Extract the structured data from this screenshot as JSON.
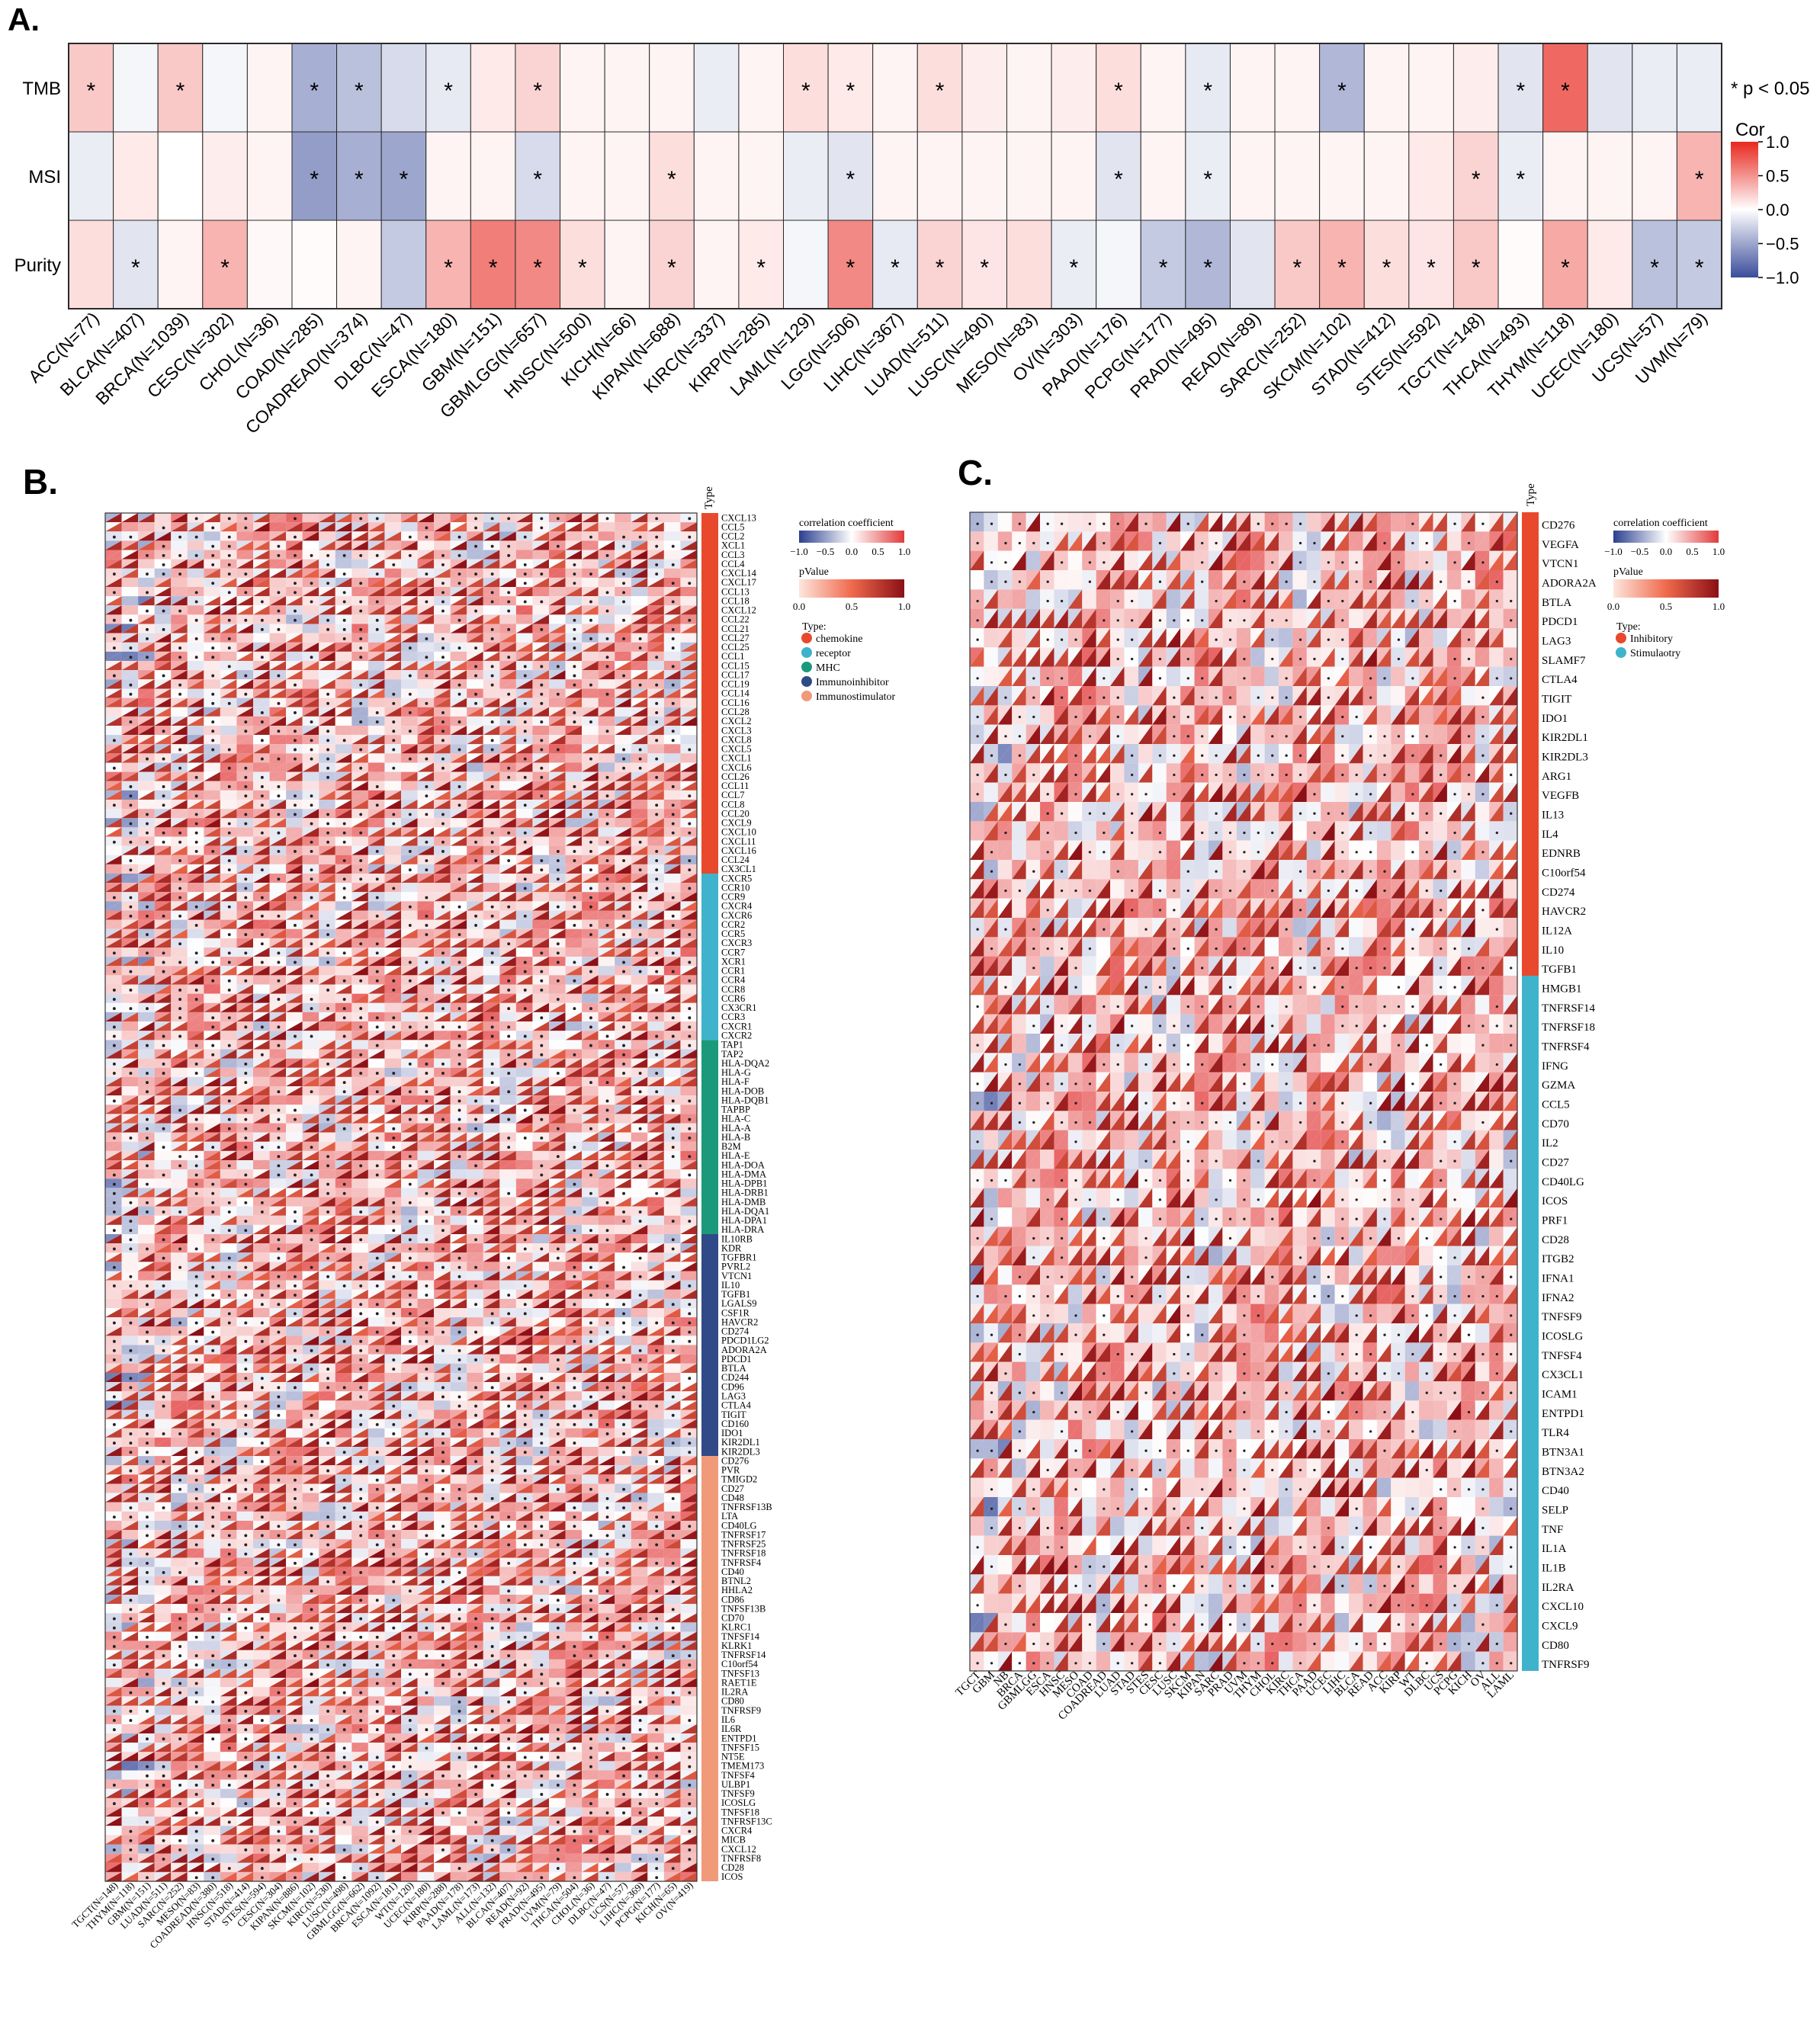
{
  "panel_labels": {
    "a": "A.",
    "b": "B.",
    "c": "C."
  },
  "chart_data": [
    {
      "type": "heatmap",
      "panel": "A.",
      "rows": [
        "TMB",
        "MSI",
        "Purity"
      ],
      "columns": [
        "ACC(N=77)",
        "BLCA(N=407)",
        "BRCA(N=1039)",
        "CESC(N=302)",
        "CHOL(N=36)",
        "COAD(N=285)",
        "COADREAD(N=374)",
        "DLBC(N=47)",
        "ESCA(N=180)",
        "GBM(N=151)",
        "GBMLGG(N=657)",
        "HNSC(N=500)",
        "KICH(N=66)",
        "KIPAN(N=688)",
        "KIRC(N=337)",
        "KIRP(N=285)",
        "LAML(N=129)",
        "LGG(N=506)",
        "LIHC(N=367)",
        "LUAD(N=511)",
        "LUSC(N=490)",
        "MESO(N=83)",
        "OV(N=303)",
        "PAAD(N=176)",
        "PCPG(N=177)",
        "PRAD(N=495)",
        "READ(N=89)",
        "SARC(N=252)",
        "SKCM(N=102)",
        "STAD(N=412)",
        "STES(N=592)",
        "TGCT(N=148)",
        "THCA(N=493)",
        "THYM(N=118)",
        "UCEC(N=180)",
        "UCS(N=57)",
        "UVM(N=79)"
      ],
      "values": [
        [
          0.25,
          -0.05,
          0.25,
          -0.05,
          0.05,
          -0.45,
          -0.35,
          -0.2,
          -0.12,
          0.1,
          0.2,
          0.05,
          0.05,
          0.05,
          -0.1,
          0.05,
          0.15,
          0.1,
          0.05,
          0.15,
          0.08,
          0.05,
          0.08,
          0.15,
          0.05,
          -0.12,
          0.05,
          0.05,
          -0.4,
          0.05,
          0.05,
          0.08,
          -0.15,
          0.7,
          -0.15,
          -0.1,
          -0.1
        ],
        [
          -0.1,
          0.1,
          0.0,
          0.08,
          0.05,
          -0.55,
          -0.45,
          -0.5,
          0.05,
          0.05,
          -0.2,
          0.05,
          0.05,
          0.15,
          0.05,
          0.05,
          -0.1,
          -0.15,
          0.05,
          0.05,
          0.05,
          0.05,
          0.05,
          -0.15,
          0.05,
          -0.1,
          0.05,
          0.05,
          0.05,
          0.05,
          0.1,
          0.2,
          -0.1,
          0.05,
          0.05,
          0.05,
          0.35
        ],
        [
          0.15,
          -0.15,
          0.05,
          0.35,
          0.03,
          0.02,
          0.05,
          -0.3,
          0.35,
          0.6,
          0.55,
          0.15,
          0.05,
          0.2,
          0.05,
          0.1,
          -0.05,
          0.55,
          -0.12,
          0.2,
          0.12,
          0.15,
          -0.1,
          -0.05,
          -0.3,
          -0.4,
          -0.15,
          0.25,
          0.35,
          0.15,
          0.12,
          0.25,
          0.02,
          0.4,
          0.1,
          -0.35,
          -0.3
        ]
      ],
      "significant": [
        [
          1,
          0,
          1,
          0,
          0,
          1,
          1,
          0,
          1,
          0,
          1,
          0,
          0,
          0,
          0,
          0,
          1,
          1,
          0,
          1,
          0,
          0,
          0,
          1,
          0,
          1,
          0,
          0,
          1,
          0,
          0,
          0,
          1,
          1,
          0,
          0,
          0
        ],
        [
          0,
          0,
          0,
          0,
          0,
          1,
          1,
          1,
          0,
          0,
          1,
          0,
          0,
          1,
          0,
          0,
          0,
          1,
          0,
          0,
          0,
          0,
          0,
          1,
          0,
          1,
          0,
          0,
          0,
          0,
          0,
          1,
          1,
          0,
          0,
          0,
          1
        ],
        [
          0,
          1,
          0,
          1,
          0,
          0,
          0,
          0,
          1,
          1,
          1,
          1,
          0,
          1,
          0,
          1,
          0,
          1,
          1,
          1,
          1,
          0,
          1,
          0,
          1,
          1,
          0,
          1,
          1,
          1,
          1,
          1,
          0,
          1,
          0,
          1,
          1
        ]
      ],
      "significance_note": "* p < 0.05",
      "legend_title": "Cor",
      "legend_ticks": [
        "1.0",
        "0.5",
        "0.0",
        "−0.5",
        "−1.0"
      ],
      "colors": {
        "low": "#3b4d9b",
        "mid": "#ffffff",
        "high": "#e8281f"
      }
    },
    {
      "type": "heatmap",
      "panel": "B.",
      "column_header": "Type",
      "columns": [
        "TGCT(N=148)",
        "THYM(N=118)",
        "GBM(N=151)",
        "LUAD(N=511)",
        "SARC(N=252)",
        "MESO(N=83)",
        "COADREAD(N=380)",
        "HNSC(N=518)",
        "STAD(N=414)",
        "STES(N=594)",
        "CESC(N=304)",
        "KIPAN(N=886)",
        "SKCM(N=102)",
        "KIRC(N=530)",
        "LUSC(N=498)",
        "GBMLGG(N=662)",
        "BRCA(N=1092)",
        "ESCA(N=181)",
        "WT(N=120)",
        "UCEC(N=180)",
        "KIRP(N=288)",
        "PAAD(N=178)",
        "LAML(N=173)",
        "ALL(N=132)",
        "BLCA(N=407)",
        "READ(N=92)",
        "PRAD(N=495)",
        "UVM(N=79)",
        "THCA(N=504)",
        "CHOL(N=36)",
        "DLBC(N=47)",
        "UCS(N=57)",
        "LIHC(N=369)",
        "PCPG(N=177)",
        "KICH(N=65)",
        "OV(N=419)"
      ],
      "rows": [
        "CXCL13",
        "CCL5",
        "CCL2",
        "XCL1",
        "CCL3",
        "CCL4",
        "CXCL14",
        "CXCL17",
        "CCL13",
        "CCL18",
        "CXCL12",
        "CCL22",
        "CCL21",
        "CCL27",
        "CCL25",
        "CCL1",
        "CCL15",
        "CCL17",
        "CCL19",
        "CCL14",
        "CCL16",
        "CCL28",
        "CXCL2",
        "CXCL3",
        "CXCL8",
        "CXCL5",
        "CXCL1",
        "CXCL6",
        "CCL26",
        "CCL11",
        "CCL7",
        "CCL8",
        "CCL20",
        "CXCL9",
        "CXCL10",
        "CXCL11",
        "CXCL16",
        "CCL24",
        "CX3CL1",
        "CXCR5",
        "CCR10",
        "CCR9",
        "CXCR4",
        "CXCR6",
        "CCR2",
        "CCR5",
        "CXCR3",
        "CCR7",
        "XCR1",
        "CCR1",
        "CCR4",
        "CCR8",
        "CCR6",
        "CX3CR1",
        "CCR3",
        "CXCR1",
        "CXCR2",
        "TAP1",
        "TAP2",
        "HLA-DQA2",
        "HLA-G",
        "HLA-F",
        "HLA-DOB",
        "HLA-DQB1",
        "TAPBP",
        "HLA-C",
        "HLA-A",
        "HLA-B",
        "B2M",
        "HLA-E",
        "HLA-DOA",
        "HLA-DMA",
        "HLA-DPB1",
        "HLA-DRB1",
        "HLA-DMB",
        "HLA-DQA1",
        "HLA-DPA1",
        "HLA-DRA",
        "IL10RB",
        "KDR",
        "TGFBR1",
        "PVRL2",
        "VTCN1",
        "IL10",
        "TGFB1",
        "LGALS9",
        "CSF1R",
        "HAVCR2",
        "CD274",
        "PDCD1LG2",
        "ADORA2A",
        "PDCD1",
        "BTLA",
        "CD244",
        "CD96",
        "LAG3",
        "CTLA4",
        "TIGIT",
        "CD160",
        "IDO1",
        "KIR2DL1",
        "KIR2DL3",
        "CD276",
        "PVR",
        "TMIGD2",
        "CD27",
        "CD48",
        "TNFRSF13B",
        "LTA",
        "CD40LG",
        "TNFRSF17",
        "TNFRSF25",
        "TNFRSF18",
        "TNFRSF4",
        "CD40",
        "BTNL2",
        "HHLA2",
        "CD86",
        "TNFSF13B",
        "CD70",
        "KLRC1",
        "TNFSF14",
        "KLRK1",
        "TNFRSF14",
        "C10orf54",
        "TNFSF13",
        "RAET1E",
        "IL2RA",
        "CD80",
        "TNFRSF9",
        "IL6",
        "IL6R",
        "ENTPD1",
        "TNFSF15",
        "NT5E",
        "TMEM173",
        "TNFSF4",
        "ULBP1",
        "TNFSF9",
        "ICOSLG",
        "TNFSF18",
        "TNFRSF13C",
        "CXCR4",
        "MICB",
        "CXCL12",
        "TNFRSF8",
        "CD28",
        "ICOS"
      ],
      "row_groups": [
        {
          "type": "chemokine",
          "count": 39
        },
        {
          "type": "receptor",
          "count": 18
        },
        {
          "type": "MHC",
          "count": 21
        },
        {
          "type": "Immunoinhibitor",
          "count": 24
        },
        {
          "type": "Immunostimulator",
          "count": 46
        }
      ],
      "legend": {
        "cor_title": "correlation coefficient",
        "cor_ticks": [
          "−1.0",
          "−0.5",
          "0.0",
          "0.5",
          "1.0"
        ],
        "p_title": "pValue",
        "p_ticks": [
          "0.0",
          "0.5",
          "1.0"
        ],
        "type_title": "Type:",
        "types": [
          {
            "label": "chemokine",
            "color": "#e8492c"
          },
          {
            "label": "receptor",
            "color": "#3fb3cc"
          },
          {
            "label": "MHC",
            "color": "#1a9a7b"
          },
          {
            "label": "Immunoinhibitor",
            "color": "#2f4a86"
          },
          {
            "label": "Immunostimulator",
            "color": "#f09a7a"
          }
        ]
      }
    },
    {
      "type": "heatmap",
      "panel": "C.",
      "column_header": "Type",
      "columns": [
        "TGCT",
        "GBM",
        "NB",
        "BRCA",
        "GBMLGG",
        "ESCA",
        "HNSC",
        "MESO",
        "COAD",
        "COADREAD",
        "LUAD",
        "STAD",
        "STES",
        "CESC",
        "LUSC",
        "SKCM",
        "KIPAN",
        "SARC",
        "PRAD",
        "UVM",
        "THYM",
        "CHOL",
        "KIRC",
        "THCA",
        "PAAD",
        "UCEC",
        "LIHC",
        "BLCA",
        "READ",
        "ACC",
        "KIRP",
        "WT",
        "DLBC",
        "UCS",
        "PCPG",
        "KICH",
        "OV",
        "ALL",
        "LAML"
      ],
      "rows": [
        "CD276",
        "VEGFA",
        "VTCN1",
        "ADORA2A",
        "BTLA",
        "PDCD1",
        "LAG3",
        "SLAMF7",
        "CTLA4",
        "TIGIT",
        "IDO1",
        "KIR2DL1",
        "KIR2DL3",
        "ARG1",
        "VEGFB",
        "IL13",
        "IL4",
        "EDNRB",
        "C10orf54",
        "CD274",
        "HAVCR2",
        "IL12A",
        "IL10",
        "TGFB1",
        "HMGB1",
        "TNFRSF14",
        "TNFRSF18",
        "TNFRSF4",
        "IFNG",
        "GZMA",
        "CCL5",
        "CD70",
        "IL2",
        "CD27",
        "CD40LG",
        "ICOS",
        "PRF1",
        "CD28",
        "ITGB2",
        "IFNA1",
        "IFNA2",
        "TNFSF9",
        "ICOSLG",
        "TNFSF4",
        "CX3CL1",
        "ICAM1",
        "ENTPD1",
        "TLR4",
        "BTN3A1",
        "BTN3A2",
        "CD40",
        "SELP",
        "TNF",
        "IL1A",
        "IL1B",
        "IL2RA",
        "CXCL10",
        "CXCL9",
        "CD80",
        "TNFRSF9"
      ],
      "row_groups": [
        {
          "type": "Inhibitory",
          "count": 24
        },
        {
          "type": "Stimulaotry",
          "count": 36
        }
      ],
      "legend": {
        "cor_title": "correlation coefficient",
        "cor_ticks": [
          "−1.0",
          "−0.5",
          "0.0",
          "0.5",
          "1.0"
        ],
        "p_title": "pValue",
        "p_ticks": [
          "0.0",
          "0.5",
          "1.0"
        ],
        "type_title": "Type:",
        "types": [
          {
            "label": "Inhibitory",
            "color": "#e8492c"
          },
          {
            "label": "Stimulaotry",
            "color": "#3fb3cc"
          }
        ]
      }
    }
  ]
}
